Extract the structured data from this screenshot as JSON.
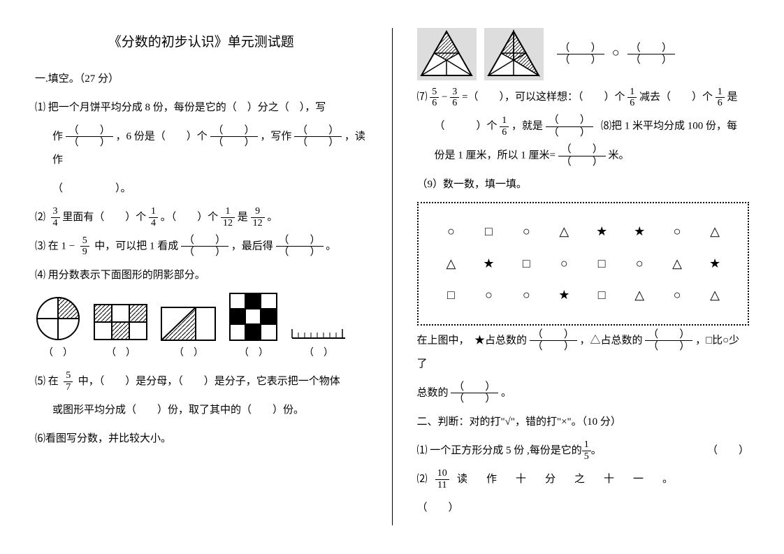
{
  "title": "《分数的初步认识》单元测试题",
  "s1": {
    "h": "一.填空。（27 分）",
    "q1a": "⑴ 把一个月饼平均分成 8 份，每份是它的（　）分之（　），写",
    "q1b": "作",
    "q1c": "，6 份是（　　）个",
    "q1d": "，写作",
    "q1e": "，读作",
    "q1f": "（　　　　　）。",
    "q2": "⑵",
    "q2a": "里面有（　　）个",
    "q2b": "。（　　）个",
    "q2c": "是",
    "q2d": "。",
    "q3": "⑶ 在 1 −",
    "q3a": "中，可以把 1 看成",
    "q3b": "，最后得",
    "q3c": "。",
    "q4": "⑷ 用分数表示下面图形的阴影部分。",
    "q5": "⑸ 在",
    "q5a": "中，（　　）是分母，（　　）是分子，它表示把一个物体",
    "q5b": "或图形平均分成（　　）份，取了其中的（　　）份。",
    "q6": "⑹看图写分数，并比较大小。",
    "q7a": "⑺",
    "q7b": "−",
    "q7c": "=（　　），可以这样想：（　　）个",
    "q7d": "减去（　　）个",
    "q7e": "是",
    "q7f": "（　　　）个",
    "q7g": "，就是",
    "q8": "⑻把 1 米平均分成 100 份，每",
    "q8a": "份是 1 厘米，所以 1 厘米=",
    "q8b": "米。",
    "q9": "（9）数一数，填一填。",
    "q9a": "在上图中，　★占总数的",
    "q9b": "，△占总数的",
    "q9c": "，□比○少了",
    "q9d": "总数的",
    "q9e": "。"
  },
  "s2": {
    "h": "二、判断：对的打\"√\"，错的打\"×\"。（10 分）",
    "q1": "⑴ 一个正方形分成 5 份 ,每份是它的",
    "q1a": "。",
    "q1b": "（　　）",
    "q2": "⑵",
    "q2a": "读　作　十　分　之　十　一　。",
    "q2b": "（　　）"
  },
  "f": {
    "f34n": "3",
    "f34d": "4",
    "f14n": "1",
    "f14d": "4",
    "f112n": "1",
    "f112d": "12",
    "f912n": "9",
    "f912d": "12",
    "f59n": "5",
    "f59d": "9",
    "f57n": "5",
    "f57d": "7",
    "f56n": "5",
    "f56d": "6",
    "f36n": "3",
    "f36d": "6",
    "f16n": "1",
    "f16d": "6",
    "f15n": "1",
    "f15d": "5",
    "f1011n": "10",
    "f1011d": "11",
    "bn": "（　　）",
    "bd": "（　　）"
  },
  "bl": "（　）",
  "cmp": "○",
  "grid": [
    [
      "○",
      "□",
      "○",
      "△",
      "★",
      "★",
      "○",
      "△"
    ],
    [
      "△",
      "★",
      "□",
      "○",
      "□",
      "○",
      "△",
      "★"
    ],
    [
      "□",
      "○",
      "○",
      "★",
      "□",
      "△",
      "○",
      "△"
    ]
  ]
}
